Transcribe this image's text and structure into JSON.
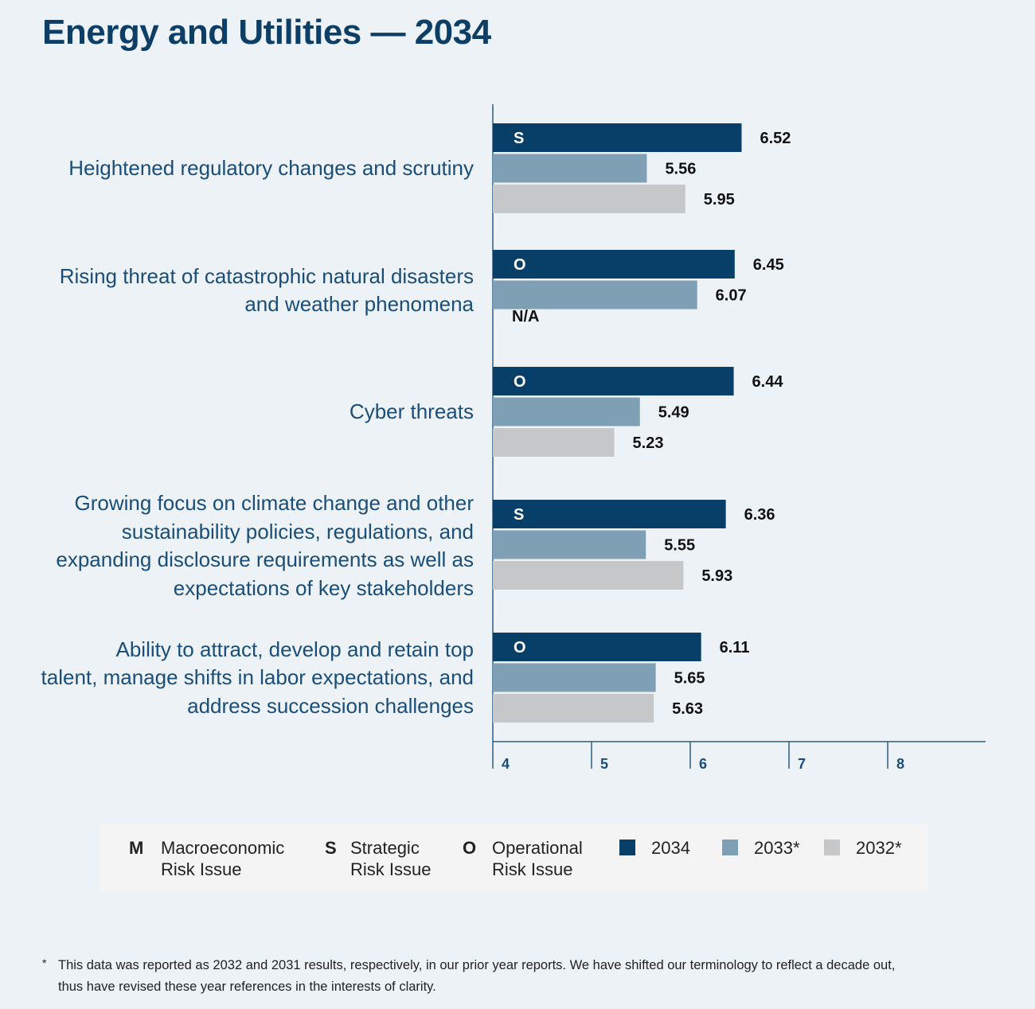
{
  "title": "Energy and Utilities — 2034",
  "colors": {
    "y2034": "#073f69",
    "y2033": "#7f9fb5",
    "y2032": "#c6c7c9",
    "axis": "#2b5c84",
    "label": "#1a4e78"
  },
  "chart_data": {
    "type": "bar",
    "orientation": "horizontal",
    "title": "Energy and Utilities — 2034",
    "xlim": [
      4,
      9
    ],
    "xticks": [
      4,
      5,
      6,
      7,
      8
    ],
    "xtick_labels": [
      "4",
      "5",
      "6",
      "7",
      "8"
    ],
    "series_names": [
      "2034",
      "2033*",
      "2032*"
    ],
    "categories": [
      {
        "label": "Heightened regulatory changes and scrutiny",
        "risk_code": "S",
        "values": [
          6.52,
          5.56,
          5.95
        ],
        "labels": [
          "6.52",
          "5.56",
          "5.95"
        ]
      },
      {
        "label": "Rising threat of catastrophic natural disasters and weather phenomena",
        "risk_code": "O",
        "values": [
          6.45,
          6.07,
          null
        ],
        "labels": [
          "6.45",
          "6.07",
          "N/A"
        ]
      },
      {
        "label": "Cyber threats",
        "risk_code": "O",
        "values": [
          6.44,
          5.49,
          5.23
        ],
        "labels": [
          "6.44",
          "5.49",
          "5.23"
        ]
      },
      {
        "label": "Growing focus on climate change and other sustainability policies, regulations, and expanding disclosure requirements as well as expectations of key stakeholders",
        "risk_code": "S",
        "values": [
          6.36,
          5.55,
          5.93
        ],
        "labels": [
          "6.36",
          "5.55",
          "5.93"
        ]
      },
      {
        "label": "Ability to attract, develop and retain top talent, manage shifts in labor expectations, and address succession challenges",
        "risk_code": "O",
        "values": [
          6.11,
          5.65,
          5.63
        ],
        "labels": [
          "6.11",
          "5.65",
          "5.63"
        ]
      }
    ]
  },
  "legend": {
    "risk_types": [
      {
        "code": "M",
        "line1": "Macroeconomic",
        "line2": "Risk Issue"
      },
      {
        "code": "S",
        "line1": "Strategic",
        "line2": "Risk Issue"
      },
      {
        "code": "O",
        "line1": "Operational",
        "line2": "Risk Issue"
      }
    ],
    "years": [
      {
        "label": "2034",
        "color": "#073f69"
      },
      {
        "label": "2033*",
        "color": "#7f9fb5"
      },
      {
        "label": "2032*",
        "color": "#c6c7c9"
      }
    ]
  },
  "footnote": {
    "marker": "*",
    "line1": "This data was reported as 2032 and 2031 results, respectively, in our prior year reports. We have shifted our terminology to reflect a decade out,",
    "line2": "thus have revised these year references in the interests of clarity."
  }
}
